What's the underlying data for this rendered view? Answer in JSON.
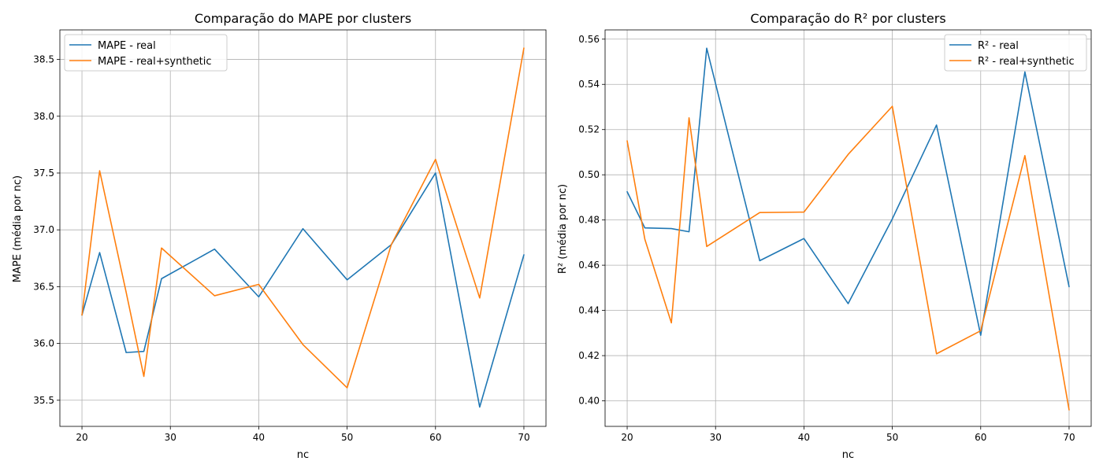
{
  "figure": {
    "background": "#ffffff"
  },
  "chart_data": [
    {
      "type": "line",
      "title": "Comparação do MAPE por clusters",
      "xlabel": "nc",
      "ylabel": "MAPE (média por nc)",
      "xlim": [
        17.5,
        72.5
      ],
      "ylim": [
        35.27,
        38.76
      ],
      "xticks": [
        20,
        30,
        40,
        50,
        60,
        70
      ],
      "yticks": [
        35.5,
        36.0,
        36.5,
        37.0,
        37.5,
        38.0,
        38.5
      ],
      "ytick_labels": [
        "35.5",
        "36.0",
        "36.5",
        "37.0",
        "37.5",
        "38.0",
        "38.5"
      ],
      "grid": true,
      "legend_position": "upper-left",
      "x": [
        20,
        22,
        25,
        27,
        29,
        35,
        40,
        45,
        50,
        55,
        60,
        65,
        70
      ],
      "series": [
        {
          "name": "MAPE - real",
          "color": "#1f77b4",
          "values": [
            36.25,
            36.8,
            35.92,
            35.93,
            36.57,
            36.83,
            36.41,
            37.01,
            36.56,
            36.87,
            37.5,
            35.44,
            36.78
          ]
        },
        {
          "name": "MAPE - real+synthetic",
          "color": "#ff7f0e",
          "values": [
            36.25,
            37.52,
            36.45,
            35.71,
            36.84,
            36.42,
            36.52,
            35.99,
            35.61,
            36.87,
            37.62,
            36.4,
            38.6
          ]
        }
      ]
    },
    {
      "type": "line",
      "title": "Comparação do R² por clusters",
      "xlabel": "nc",
      "ylabel": "R² (média por nc)",
      "xlim": [
        17.5,
        72.5
      ],
      "ylim": [
        0.3887,
        0.5641
      ],
      "xticks": [
        20,
        30,
        40,
        50,
        60,
        70
      ],
      "yticks": [
        0.4,
        0.42,
        0.44,
        0.46,
        0.48,
        0.5,
        0.52,
        0.54,
        0.56
      ],
      "ytick_labels": [
        "0.40",
        "0.42",
        "0.44",
        "0.46",
        "0.48",
        "0.50",
        "0.52",
        "0.54",
        "0.56"
      ],
      "grid": true,
      "legend_position": "upper-right",
      "x": [
        20,
        22,
        25,
        27,
        29,
        35,
        40,
        45,
        50,
        55,
        60,
        65,
        70
      ],
      "series": [
        {
          "name": "R² - real",
          "color": "#1f77b4",
          "values": [
            0.4925,
            0.4765,
            0.4762,
            0.4748,
            0.556,
            0.462,
            0.4718,
            0.443,
            0.4805,
            0.522,
            0.429,
            0.5455,
            0.4505
          ]
        },
        {
          "name": "R² - real+synthetic",
          "color": "#ff7f0e",
          "values": [
            0.515,
            0.4715,
            0.4345,
            0.5252,
            0.4683,
            0.4833,
            0.4835,
            0.509,
            0.5303,
            0.4208,
            0.431,
            0.5085,
            0.396
          ]
        }
      ]
    }
  ]
}
